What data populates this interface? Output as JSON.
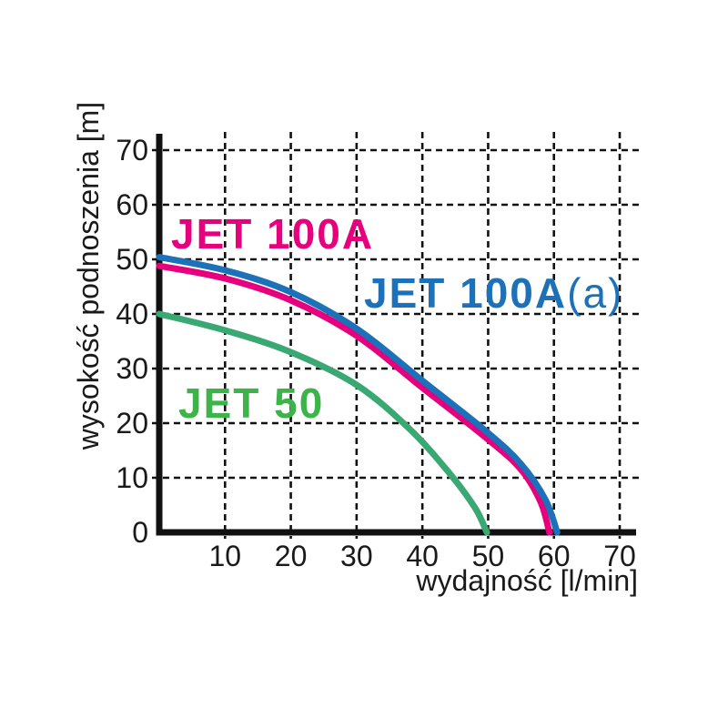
{
  "background": "#ffffff",
  "chart_data": {
    "type": "line",
    "title": "",
    "xlabel": "wydajność [l/min]",
    "ylabel": "wysokość podnoszenia [m]",
    "xlim": [
      0,
      74
    ],
    "ylim": [
      0,
      72
    ],
    "xticks": [
      "10",
      "20",
      "30",
      "40",
      "50",
      "60",
      "70"
    ],
    "yticks": [
      "0",
      "10",
      "20",
      "30",
      "40",
      "50",
      "60",
      "70"
    ],
    "grid": "dashed-black",
    "legend_position": "inline-labels",
    "series": [
      {
        "name": "JET 100A",
        "color": "#e6007e",
        "points": [
          [
            0,
            48.8
          ],
          [
            10,
            46.5
          ],
          [
            20,
            42.5
          ],
          [
            30,
            36
          ],
          [
            40,
            26.5
          ],
          [
            50,
            17
          ],
          [
            55,
            11.5
          ],
          [
            58,
            5.5
          ],
          [
            59.3,
            0
          ]
        ]
      },
      {
        "name": "JET 100A(a)",
        "color": "#1d71b8",
        "points": [
          [
            0,
            50.4
          ],
          [
            10,
            48
          ],
          [
            20,
            44
          ],
          [
            30,
            37.3
          ],
          [
            40,
            27.8
          ],
          [
            50,
            18.2
          ],
          [
            55,
            12.5
          ],
          [
            58.7,
            6
          ],
          [
            60.5,
            0
          ]
        ]
      },
      {
        "name": "JET 50",
        "color": "#3aa873",
        "points": [
          [
            0,
            40
          ],
          [
            10,
            37
          ],
          [
            20,
            33
          ],
          [
            30,
            27
          ],
          [
            38,
            19
          ],
          [
            44,
            11
          ],
          [
            48,
            4.5
          ],
          [
            49.8,
            0
          ]
        ]
      }
    ],
    "annotations": [
      {
        "text": "JET 100A",
        "color": "#e6007e"
      },
      {
        "text_bold": "JET 100A",
        "text_light": "(a)",
        "color": "#1d71b8"
      },
      {
        "text": "JET 50",
        "color": "#3cb44a"
      }
    ],
    "axis_color": "#111111",
    "grid_color": "#111111"
  }
}
